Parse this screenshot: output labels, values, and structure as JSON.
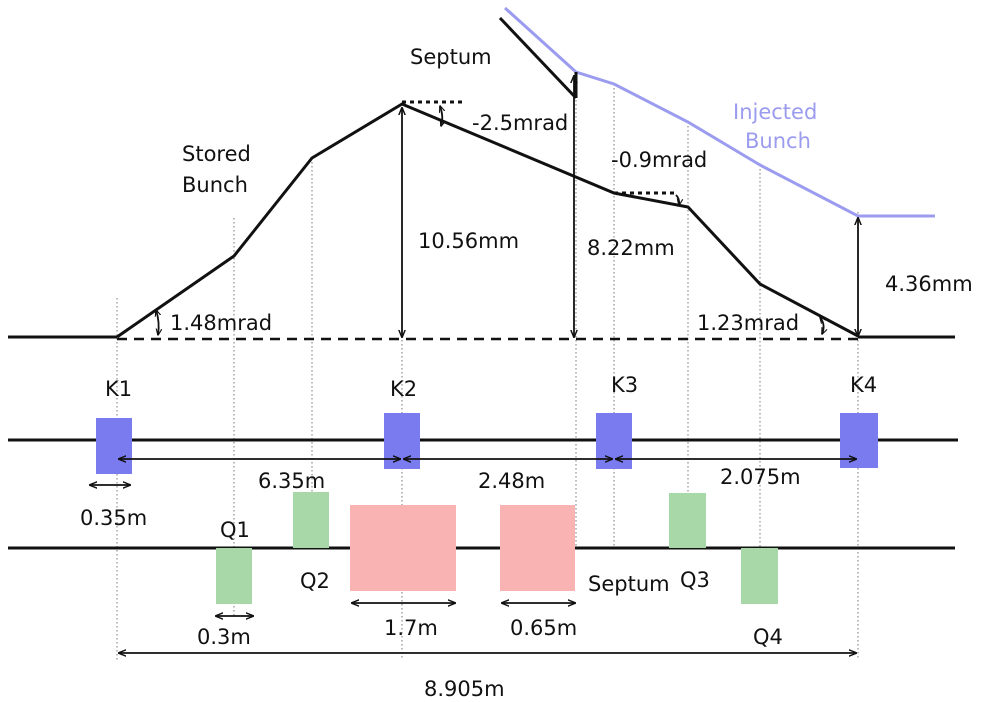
{
  "labels": {
    "septum_top": "Septum",
    "stored_bunch_line1": "Stored",
    "stored_bunch_line2": "Bunch",
    "injected_bunch_line1": "Injected",
    "injected_bunch_line2": "Bunch",
    "angle_k1": "1.48mrad",
    "angle_k2": "-2.5mrad",
    "angle_k3": "-0.9mrad",
    "angle_k4": "1.23mrad",
    "offset_k2": "10.56mm",
    "offset_septum": "8.22mm",
    "offset_k4": "4.36mm",
    "kicker_k1": "K1",
    "kicker_k2": "K2",
    "kicker_k3": "K3",
    "kicker_k4": "K4",
    "dist_k1_k2": "6.35m",
    "dist_k2_k3": "2.48m",
    "dist_k3_k4": "2.075m",
    "kicker_length": "0.35m",
    "quad_q1": "Q1",
    "quad_q2": "Q2",
    "quad_q3": "Q3",
    "quad_q4": "Q4",
    "septum_bottom": "Septum",
    "quad_length": "0.3m",
    "bend_length": "1.7m",
    "septum_length": "0.65m",
    "total_length": "8.905m"
  },
  "colors": {
    "kicker": "#7b7bf0",
    "quadrupole": "#a8d8a8",
    "bend": "#f9b3b3",
    "injected_line": "#9b9bef",
    "stored_line": "#111111"
  }
}
